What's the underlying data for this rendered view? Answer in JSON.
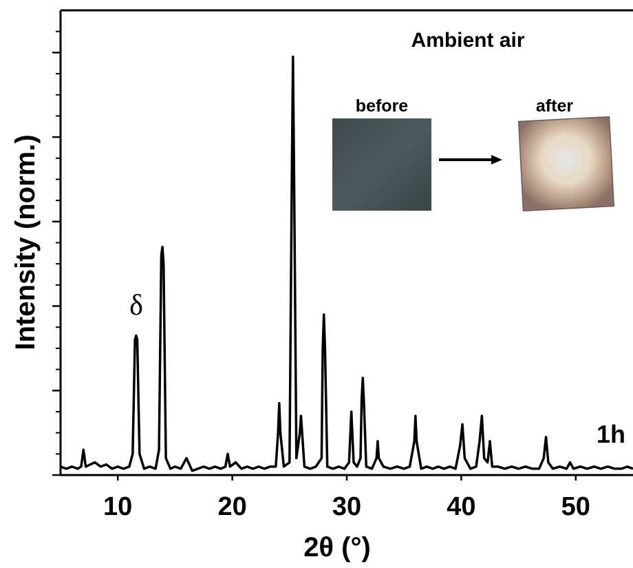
{
  "chart_data": {
    "type": "line",
    "title": "Ambient air",
    "x_label": "2θ (°)",
    "y_label": "Intensity (norm.)",
    "annotations": [
      "δ",
      "1h"
    ],
    "inset_labels": [
      "before",
      "after"
    ],
    "xlim": [
      5,
      55
    ],
    "xticks": [
      10,
      20,
      30,
      40,
      50
    ],
    "ylim": [
      0,
      1.1
    ],
    "yticks": [
      0,
      0.2,
      0.4,
      0.6,
      0.8,
      1.0
    ],
    "yminorticks": [
      0.05,
      0.1,
      0.15,
      0.25,
      0.3,
      0.35,
      0.45,
      0.5,
      0.55,
      0.65,
      0.7,
      0.75,
      0.85,
      0.9,
      0.95,
      1.05
    ],
    "color": "#000000",
    "x": [
      5,
      5.5,
      6,
      6.5,
      6.8,
      7.0,
      7.2,
      7.6,
      8.0,
      8.5,
      9,
      9.5,
      10,
      10.5,
      11,
      11.3,
      11.5,
      11.6,
      11.7,
      11.9,
      12.3,
      12.8,
      13.3,
      13.6,
      13.8,
      13.9,
      14.0,
      14.2,
      14.6,
      15,
      15.5,
      16.0,
      16.5,
      17,
      17.5,
      18,
      18.5,
      19,
      19.4,
      19.6,
      19.8,
      20.3,
      20.8,
      21.3,
      21.8,
      22.3,
      22.8,
      23.3,
      23.8,
      24.0,
      24.1,
      24.2,
      24.5,
      25.0,
      25.2,
      25.3,
      25.4,
      25.6,
      25.9,
      26.0,
      26.1,
      26.3,
      26.8,
      27.3,
      27.8,
      27.9,
      28.0,
      28.1,
      28.3,
      28.8,
      29.3,
      29.8,
      30.2,
      30.4,
      30.6,
      30.9,
      31.2,
      31.3,
      31.4,
      31.5,
      31.7,
      32.2,
      32.6,
      32.7,
      32.8,
      33.2,
      33.8,
      34.4,
      35,
      35.5,
      35.9,
      36.0,
      36.1,
      36.5,
      37,
      37.5,
      38,
      38.5,
      39,
      39.5,
      39.9,
      40.1,
      40.3,
      40.8,
      41.3,
      41.6,
      41.8,
      42.0,
      42.3,
      42.5,
      42.7,
      43.2,
      43.8,
      44.4,
      45,
      45.6,
      46.2,
      46.8,
      47.2,
      47.4,
      47.6,
      48,
      48.6,
      49.2,
      49.5,
      49.8,
      50.4,
      51,
      51.6,
      52.2,
      52.8,
      53.4,
      54,
      54.5,
      55
    ],
    "values": [
      0.02,
      0.015,
      0.02,
      0.015,
      0.02,
      0.06,
      0.02,
      0.025,
      0.03,
      0.02,
      0.025,
      0.015,
      0.02,
      0.015,
      0.02,
      0.05,
      0.32,
      0.33,
      0.32,
      0.05,
      0.015,
      0.02,
      0.015,
      0.06,
      0.52,
      0.54,
      0.5,
      0.04,
      0.015,
      0.02,
      0.015,
      0.04,
      0.01,
      0.015,
      0.02,
      0.015,
      0.02,
      0.015,
      0.02,
      0.05,
      0.02,
      0.03,
      0.015,
      0.02,
      0.015,
      0.02,
      0.015,
      0.02,
      0.02,
      0.1,
      0.17,
      0.1,
      0.02,
      0.03,
      0.7,
      0.99,
      0.7,
      0.04,
      0.1,
      0.14,
      0.1,
      0.02,
      0.015,
      0.02,
      0.04,
      0.3,
      0.38,
      0.3,
      0.02,
      0.015,
      0.02,
      0.015,
      0.03,
      0.15,
      0.03,
      0.02,
      0.04,
      0.18,
      0.23,
      0.17,
      0.02,
      0.015,
      0.04,
      0.08,
      0.04,
      0.02,
      0.015,
      0.02,
      0.015,
      0.02,
      0.08,
      0.14,
      0.08,
      0.015,
      0.02,
      0.015,
      0.02,
      0.015,
      0.02,
      0.015,
      0.07,
      0.12,
      0.04,
      0.015,
      0.02,
      0.08,
      0.14,
      0.04,
      0.03,
      0.08,
      0.02,
      0.02,
      0.015,
      0.02,
      0.015,
      0.02,
      0.015,
      0.015,
      0.04,
      0.09,
      0.03,
      0.015,
      0.02,
      0.015,
      0.03,
      0.015,
      0.02,
      0.015,
      0.02,
      0.015,
      0.02,
      0.015,
      0.015,
      0.02,
      0.015
    ]
  }
}
